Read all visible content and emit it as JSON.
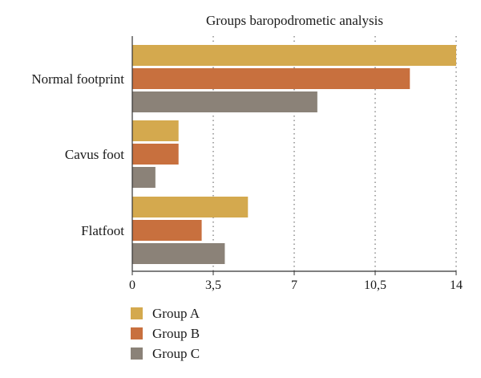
{
  "chart_data": {
    "type": "bar",
    "orientation": "horizontal",
    "title": "Groups baropodrometic analysis",
    "categories": [
      "Normal footprint",
      "Cavus foot",
      "Flatfoot"
    ],
    "series": [
      {
        "name": "Group A",
        "color": "#D4A94E",
        "values": [
          14,
          2,
          5
        ]
      },
      {
        "name": "Group B",
        "color": "#C8703E",
        "values": [
          12,
          2,
          3
        ]
      },
      {
        "name": "Group C",
        "color": "#8B8278",
        "values": [
          8,
          1,
          4
        ]
      }
    ],
    "xlim": [
      0,
      14
    ],
    "xticks": [
      0,
      3.5,
      7,
      10.5,
      14
    ],
    "xtick_labels": [
      "0",
      "3,5",
      "7",
      "10,5",
      "14"
    ],
    "grid": "vertical dotted",
    "legend_position": "bottom-left"
  }
}
